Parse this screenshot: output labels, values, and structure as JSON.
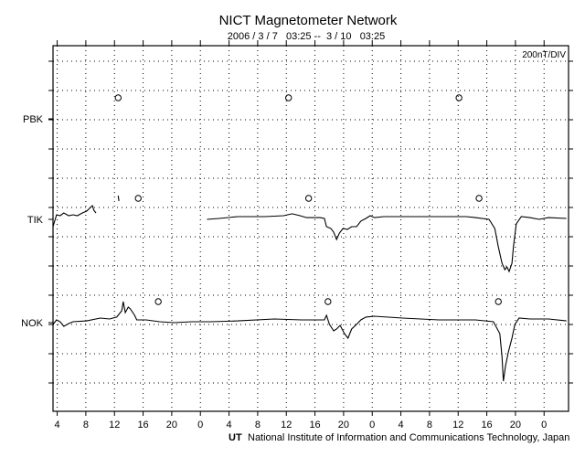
{
  "chart_data": {
    "type": "line",
    "title": "NICT Magnetometer Network",
    "subtitle": "2006 / 3 / 7   03:25 --  3 / 10   03:25",
    "scale_label": "200nT/DIV",
    "xlabel": "UT",
    "footer": "National Institute of Information and Communications Technology, Japan",
    "x_units": "hours since 2006-03-07 03:25 UT",
    "xlim": [
      0,
      72
    ],
    "x_ticks": {
      "first_hour": 0.583,
      "step_hours": 4,
      "labels": [
        "4",
        "8",
        "12",
        "16",
        "20",
        "0",
        "4",
        "8",
        "12",
        "16",
        "20",
        "0",
        "4",
        "8",
        "12",
        "16",
        "20",
        "0"
      ]
    },
    "nT_per_div": 200,
    "grid": true,
    "stations": [
      {
        "name": "PBK",
        "markers": [
          9.1,
          32.9,
          56.7
        ],
        "segments": []
      },
      {
        "name": "TIK",
        "markers": [
          11.9,
          35.7,
          59.5
        ],
        "segments": [
          [
            [
              0,
              -50
            ],
            [
              0.5,
              31
            ],
            [
              1.0,
              25
            ],
            [
              1.5,
              44
            ],
            [
              2.2,
              25
            ],
            [
              2.8,
              31
            ],
            [
              3.4,
              25
            ],
            [
              4.1,
              44
            ],
            [
              4.7,
              56
            ],
            [
              5.1,
              75
            ],
            [
              5.5,
              94
            ],
            [
              5.7,
              62
            ],
            [
              6.0,
              44
            ]
          ],
          [
            [
              9.1,
              162
            ],
            [
              9.2,
              125
            ]
          ],
          [
            [
              21.5,
              0
            ],
            [
              23.2,
              6
            ],
            [
              25.8,
              19
            ],
            [
              29.6,
              19
            ],
            [
              32.2,
              25
            ],
            [
              33.4,
              38
            ],
            [
              34.5,
              25
            ],
            [
              35.4,
              12
            ],
            [
              37.3,
              12
            ],
            [
              37.9,
              6
            ],
            [
              38.2,
              -50
            ],
            [
              38.8,
              -62
            ],
            [
              39.2,
              -88
            ],
            [
              39.6,
              -138
            ],
            [
              40.0,
              -94
            ],
            [
              40.5,
              -62
            ],
            [
              41.1,
              -69
            ],
            [
              41.7,
              -50
            ],
            [
              42.4,
              -50
            ],
            [
              43.0,
              -12
            ],
            [
              43.7,
              6
            ],
            [
              44.3,
              25
            ],
            [
              44.9,
              12
            ],
            [
              46.2,
              19
            ],
            [
              48.8,
              19
            ],
            [
              53.9,
              19
            ],
            [
              57.7,
              19
            ],
            [
              59.0,
              12
            ],
            [
              60.9,
              0
            ],
            [
              61.7,
              -62
            ],
            [
              62.2,
              -188
            ],
            [
              62.7,
              -300
            ],
            [
              63.1,
              -344
            ],
            [
              63.4,
              -325
            ],
            [
              63.7,
              -356
            ],
            [
              64.1,
              -300
            ],
            [
              64.3,
              -188
            ],
            [
              64.7,
              -31
            ],
            [
              65.4,
              19
            ],
            [
              66.6,
              12
            ],
            [
              67.9,
              0
            ],
            [
              69.2,
              12
            ],
            [
              71.7,
              6
            ]
          ]
        ]
      },
      {
        "name": "NOK",
        "markers": [
          14.7,
          38.4,
          62.2
        ],
        "segments": [
          [
            [
              0,
              -12
            ],
            [
              0.5,
              19
            ],
            [
              1.0,
              6
            ],
            [
              1.5,
              -25
            ],
            [
              2.2,
              -6
            ],
            [
              2.8,
              6
            ],
            [
              4.7,
              12
            ],
            [
              6.6,
              31
            ],
            [
              7.9,
              25
            ],
            [
              8.9,
              38
            ],
            [
              9.6,
              81
            ],
            [
              9.8,
              144
            ],
            [
              10.1,
              69
            ],
            [
              10.5,
              106
            ],
            [
              10.8,
              94
            ],
            [
              11.4,
              50
            ],
            [
              11.7,
              19
            ],
            [
              13.0,
              19
            ],
            [
              14.9,
              6
            ],
            [
              16.9,
              0
            ],
            [
              19.4,
              6
            ],
            [
              22.0,
              6
            ],
            [
              25.8,
              12
            ],
            [
              30.9,
              25
            ],
            [
              34.7,
              19
            ],
            [
              37.9,
              19
            ],
            [
              38.2,
              50
            ],
            [
              38.6,
              -12
            ],
            [
              39.2,
              -56
            ],
            [
              39.6,
              -44
            ],
            [
              40.1,
              -19
            ],
            [
              40.7,
              -75
            ],
            [
              41.2,
              -106
            ],
            [
              41.7,
              -44
            ],
            [
              42.4,
              -12
            ],
            [
              43.0,
              19
            ],
            [
              43.7,
              38
            ],
            [
              44.9,
              44
            ],
            [
              48.8,
              31
            ],
            [
              53.9,
              19
            ],
            [
              59.0,
              19
            ],
            [
              61.5,
              6
            ],
            [
              62.4,
              -75
            ],
            [
              62.7,
              -231
            ],
            [
              62.9,
              -400
            ],
            [
              63.2,
              -294
            ],
            [
              63.6,
              -200
            ],
            [
              64.1,
              -106
            ],
            [
              64.5,
              -12
            ],
            [
              65.1,
              31
            ],
            [
              66.6,
              25
            ],
            [
              69.2,
              25
            ],
            [
              71.7,
              12
            ]
          ]
        ]
      }
    ]
  }
}
